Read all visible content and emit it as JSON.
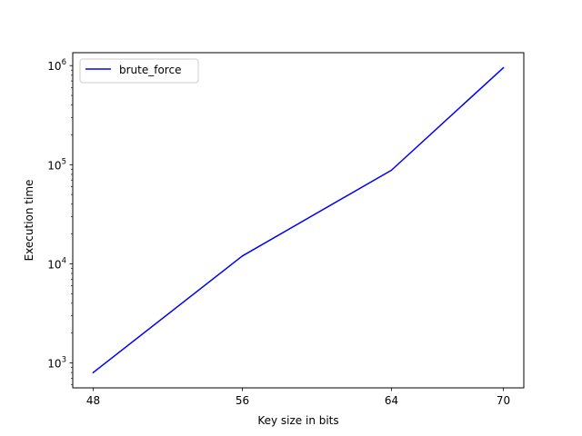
{
  "chart_data": {
    "type": "line",
    "title": "",
    "xlabel": "Key size in bits",
    "ylabel": "Execution time",
    "yscale": "log",
    "x": [
      48,
      56,
      64,
      70
    ],
    "x_ticks": [
      48,
      56,
      64,
      70
    ],
    "y_ticks": [
      1000,
      10000,
      100000,
      1000000
    ],
    "y_tick_labels": [
      {
        "base": "10",
        "exp": "3"
      },
      {
        "base": "10",
        "exp": "4"
      },
      {
        "base": "10",
        "exp": "5"
      },
      {
        "base": "10",
        "exp": "6"
      }
    ],
    "xlim": [
      46.9,
      71.1
    ],
    "ylim": [
      560,
      1350000
    ],
    "grid": false,
    "legend_position": "top-left",
    "series": [
      {
        "name": "brute_force",
        "color": "#0000ff",
        "values": [
          800,
          12000,
          88000,
          950000
        ]
      }
    ]
  }
}
